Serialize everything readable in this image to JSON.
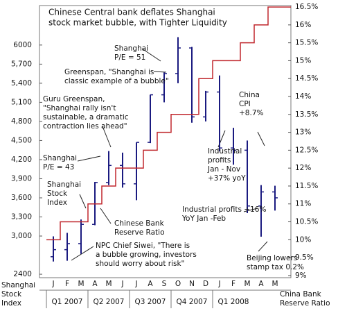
{
  "chart_data": {
    "type": "ohlc",
    "title": [
      "Chinese Central bank deflates Shanghai",
      "stock market bubble, with Tighter Liquidity"
    ],
    "categories": [
      "J",
      "F",
      "M",
      "A",
      "M",
      "J",
      "J",
      "A",
      "S",
      "O",
      "N",
      "D",
      "J",
      "F",
      "M",
      "A",
      "M"
    ],
    "quarters": [
      "Q1 2007",
      "Q2 2007",
      "Q3 2007",
      "Q4 2007",
      "Q1 2008"
    ],
    "y_label": [
      "Shanghai",
      "Stock",
      "Index"
    ],
    "y2_label": [
      "China Bank",
      "Reserve Ratio"
    ],
    "series": [
      {
        "name": [
          "Shanghai",
          "Stock",
          "Index"
        ],
        "color": "#1a1a80",
        "open": [
          2675,
          2786,
          2881,
          3183,
          3841,
          4109,
          3820,
          4471,
          5218,
          5552,
          5954,
          4871,
          5262,
          4383,
          4348,
          3472,
          3693
        ],
        "high": [
          2995,
          3050,
          3260,
          3850,
          4335,
          4310,
          4470,
          5220,
          5570,
          6124,
          5970,
          5280,
          5522,
          4700,
          4500,
          3800,
          3790
        ],
        "low": [
          2600,
          2612,
          2720,
          3170,
          3800,
          3760,
          3563,
          4460,
          5100,
          5400,
          4780,
          4800,
          4330,
          4120,
          3360,
          2990,
          3400
        ],
        "close": [
          2786,
          2881,
          3183,
          3841,
          4109,
          3820,
          4471,
          5218,
          5552,
          5954,
          4871,
          5262,
          4383,
          4348,
          3472,
          3693,
          3600
        ]
      },
      {
        "name": [
          "Chinese Bank",
          "Reserve Ratio"
        ],
        "color": "#c0272d",
        "axis": "y2",
        "values": [
          10,
          10.5,
          10.5,
          11,
          11.5,
          12,
          12,
          12.5,
          13,
          13.5,
          13.5,
          14.5,
          15,
          15,
          15.5,
          16,
          16.5
        ]
      }
    ],
    "ylim": [
      2346,
      6620
    ],
    "yticks": [
      6000,
      {
        "value": 5700,
        "label": "5,700"
      },
      {
        "value": 5400,
        "label": "5,400"
      },
      {
        "value": 5100,
        "label": "5,100"
      },
      {
        "value": 4800,
        "label": "4,800"
      },
      {
        "value": 4500,
        "label": "4,500"
      },
      {
        "value": 4200,
        "label": "4,200"
      },
      {
        "value": 3900,
        "label": "3,900"
      },
      {
        "value": 3600,
        "label": "3,600"
      },
      {
        "value": 3300,
        "label": "3,300"
      },
      {
        "value": 3000,
        "label": "3,000"
      },
      2400
    ],
    "y2lim": [
      8.94,
      16.54
    ],
    "y2ticks": [
      {
        "value": 16.5,
        "label": "16.5%"
      },
      {
        "value": 16,
        "label": "16%"
      },
      {
        "value": 15.5,
        "label": "15.5%"
      },
      {
        "value": 15,
        "label": "15%"
      },
      {
        "value": 14.5,
        "label": "14.5%"
      },
      {
        "value": 14,
        "label": "14%"
      },
      {
        "value": 13.5,
        "label": "13.5%"
      },
      {
        "value": 13,
        "label": "13%"
      },
      {
        "value": 12.5,
        "label": "12.5%"
      },
      {
        "value": 12,
        "label": "12%"
      },
      {
        "value": 11.5,
        "label": "11.5%"
      },
      {
        "value": 11,
        "label": "11%"
      },
      {
        "value": 10.5,
        "label": "10.5%"
      },
      {
        "value": 10,
        "label": "10%"
      },
      {
        "value": 9.5,
        "label": "9.5%"
      },
      {
        "value": 9,
        "label": "9%"
      }
    ],
    "annotations": [
      [
        "Shanghai",
        "P/E = 51"
      ],
      [
        "Greenspan, \"Shanghai is",
        "classic example of a bubble\""
      ],
      [
        "Guru Greenspan,",
        "\"Shanghai rally isn't",
        "sustainable, a dramatic",
        "contraction lies ahead\""
      ],
      [
        "Shanghai",
        "P/E = 43"
      ],
      [
        "NPC Chief Siwei, \"There is",
        "a bubble growing, investors",
        "should worry about risk\""
      ],
      [
        "Industrial",
        "profits",
        "Jan - Nov",
        "+37% yoY"
      ],
      [
        "China",
        "CPI",
        "+8.7%"
      ],
      [
        "Industrial profits +16%",
        "YoY Jan -Feb"
      ],
      [
        "Beijing lowers",
        "stamp tax 0.2%"
      ]
    ]
  }
}
